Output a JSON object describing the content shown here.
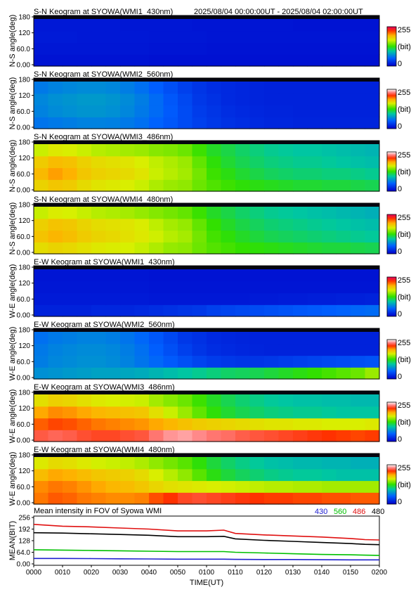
{
  "header": {
    "date_range": "2025/08/04 00:00:00UT - 2025/08/04 02:00:00UT"
  },
  "colorbar": {
    "max_label": "255",
    "unit_label": "(bit)",
    "min_label": "0"
  },
  "chart_data": [
    {
      "type": "heatmap",
      "title": "S-N Keogram at SYOWA(WMI1_430nm)",
      "ylabel": "N-S angle(deg)",
      "yticks": [
        "0.00",
        "60.0",
        "120",
        "180"
      ],
      "ylim": [
        0,
        180
      ],
      "scale": "sequential",
      "z_rows_south_to_north_vs_time": [
        [
          10,
          10,
          10,
          10,
          10,
          10,
          10,
          10,
          9,
          9,
          9,
          9,
          9,
          9,
          9,
          9,
          9,
          9,
          9,
          9,
          9,
          9,
          9,
          9
        ],
        [
          12,
          12,
          12,
          12,
          12,
          12,
          12,
          12,
          11,
          11,
          11,
          11,
          10,
          10,
          10,
          10,
          10,
          10,
          10,
          10,
          10,
          10,
          10,
          10
        ],
        [
          14,
          14,
          14,
          13,
          13,
          13,
          13,
          13,
          12,
          12,
          12,
          12,
          11,
          11,
          11,
          11,
          11,
          11,
          11,
          11,
          11,
          11,
          11,
          11
        ],
        [
          13,
          13,
          13,
          13,
          13,
          13,
          12,
          12,
          12,
          12,
          12,
          11,
          11,
          11,
          11,
          11,
          11,
          11,
          10,
          10,
          10,
          10,
          10,
          10
        ]
      ]
    },
    {
      "type": "heatmap",
      "title": "S-N Keogram at SYOWA(WMI2_560nm)",
      "ylabel": "N-S angle(deg)",
      "yticks": [
        "0.00",
        "60.0",
        "120",
        "180"
      ],
      "ylim": [
        0,
        180
      ],
      "scale": "white-top",
      "z_rows_south_to_north_vs_time": [
        [
          60,
          62,
          64,
          66,
          66,
          65,
          62,
          58,
          52,
          46,
          40,
          34,
          30,
          26,
          24,
          22,
          20,
          20,
          19,
          19,
          19,
          19,
          19,
          19
        ],
        [
          66,
          70,
          72,
          74,
          74,
          72,
          68,
          62,
          56,
          48,
          40,
          32,
          28,
          24,
          22,
          20,
          19,
          19,
          18,
          18,
          18,
          18,
          18,
          18
        ],
        [
          68,
          72,
          74,
          76,
          76,
          74,
          70,
          64,
          56,
          46,
          38,
          30,
          26,
          22,
          20,
          19,
          18,
          18,
          18,
          18,
          18,
          18,
          18,
          18
        ],
        [
          62,
          66,
          68,
          70,
          70,
          68,
          64,
          58,
          50,
          42,
          34,
          28,
          24,
          22,
          20,
          19,
          18,
          18,
          18,
          18,
          18,
          18,
          18,
          18
        ]
      ]
    },
    {
      "type": "heatmap",
      "title": "S-N Keogram at SYOWA(WMI3_486nm)",
      "ylabel": "N-S angle(deg)",
      "yticks": [
        "0.00",
        "60.0",
        "120",
        "180"
      ],
      "ylim": [
        0,
        180
      ],
      "scale": "white-top",
      "z_rows_south_to_north_vs_time": [
        [
          175,
          180,
          178,
          172,
          168,
          166,
          164,
          160,
          154,
          150,
          148,
          140,
          134,
          130,
          126,
          124,
          122,
          120,
          118,
          118,
          116,
          116,
          114,
          112
        ],
        [
          185,
          192,
          188,
          180,
          176,
          174,
          172,
          168,
          160,
          156,
          152,
          142,
          130,
          124,
          118,
          114,
          110,
          108,
          106,
          106,
          104,
          104,
          102,
          100
        ],
        [
          178,
          184,
          182,
          176,
          172,
          170,
          168,
          164,
          158,
          154,
          150,
          138,
          126,
          118,
          112,
          108,
          104,
          102,
          100,
          100,
          98,
          96,
          94,
          92
        ],
        [
          160,
          166,
          164,
          160,
          156,
          154,
          152,
          150,
          146,
          144,
          140,
          130,
          120,
          114,
          108,
          104,
          100,
          98,
          96,
          96,
          94,
          92,
          90,
          88
        ]
      ]
    },
    {
      "type": "heatmap",
      "title": "S-N Keogram at SYOWA(WMI4_480nm)",
      "ylabel": "N-S angle(deg)",
      "yticks": [
        "0.00",
        "60.0",
        "120",
        "180"
      ],
      "ylim": [
        0,
        180
      ],
      "scale": "sequential",
      "z_rows_south_to_north_vs_time": [
        [
          178,
          182,
          180,
          176,
          172,
          170,
          168,
          164,
          158,
          152,
          150,
          142,
          136,
          132,
          128,
          126,
          124,
          122,
          120,
          118,
          116,
          116,
          114,
          112
        ],
        [
          190,
          196,
          192,
          186,
          182,
          180,
          176,
          172,
          166,
          160,
          156,
          144,
          132,
          126,
          120,
          116,
          112,
          110,
          108,
          106,
          104,
          102,
          100,
          98
        ],
        [
          184,
          190,
          188,
          182,
          178,
          176,
          174,
          170,
          162,
          156,
          152,
          140,
          128,
          120,
          114,
          110,
          106,
          104,
          102,
          100,
          98,
          96,
          94,
          92
        ],
        [
          164,
          170,
          168,
          164,
          160,
          158,
          156,
          152,
          148,
          144,
          140,
          130,
          120,
          114,
          108,
          104,
          100,
          98,
          96,
          94,
          92,
          90,
          88,
          86
        ]
      ]
    },
    {
      "type": "heatmap",
      "title": "E-W Keogram at SYOWA(WMI1_430nm)",
      "ylabel": "W-E angle(deg)",
      "yticks": [
        "0.00",
        "60.0",
        "120",
        "180"
      ],
      "ylim": [
        0,
        180
      ],
      "scale": "sequential",
      "z_rows_south_to_north_vs_time": [
        [
          18,
          18,
          18,
          18,
          20,
          20,
          20,
          22,
          24,
          26,
          28,
          30,
          34,
          36,
          38,
          40,
          42,
          44,
          46,
          48,
          50,
          52,
          54,
          56
        ],
        [
          14,
          14,
          14,
          14,
          14,
          14,
          14,
          14,
          13,
          13,
          13,
          13,
          13,
          13,
          13,
          14,
          14,
          15,
          15,
          16,
          16,
          17,
          17,
          18
        ],
        [
          12,
          12,
          12,
          12,
          12,
          12,
          12,
          12,
          11,
          11,
          11,
          11,
          11,
          11,
          11,
          11,
          11,
          11,
          11,
          11,
          11,
          11,
          11,
          11
        ],
        [
          11,
          11,
          11,
          11,
          11,
          11,
          11,
          11,
          10,
          10,
          10,
          10,
          10,
          10,
          10,
          10,
          10,
          10,
          10,
          10,
          10,
          10,
          10,
          10
        ]
      ]
    },
    {
      "type": "heatmap",
      "title": "E-W Keogram at SYOWA(WMI2_560nm)",
      "ylabel": "W-E angle(deg)",
      "yticks": [
        "0.00",
        "60.0",
        "120",
        "180"
      ],
      "ylim": [
        0,
        180
      ],
      "scale": "white-top",
      "z_rows_south_to_north_vs_time": [
        [
          72,
          74,
          76,
          78,
          80,
          80,
          82,
          84,
          88,
          92,
          96,
          100,
          104,
          108,
          110,
          112,
          116,
          120,
          124,
          128,
          132,
          136,
          140,
          150
        ],
        [
          64,
          68,
          70,
          72,
          72,
          70,
          66,
          60,
          54,
          48,
          42,
          36,
          32,
          30,
          28,
          28,
          30,
          32,
          34,
          36,
          38,
          40,
          42,
          44
        ],
        [
          62,
          66,
          68,
          70,
          70,
          68,
          64,
          58,
          50,
          42,
          34,
          28,
          24,
          22,
          20,
          19,
          18,
          18,
          18,
          18,
          18,
          18,
          18,
          18
        ],
        [
          58,
          62,
          64,
          66,
          66,
          64,
          60,
          54,
          46,
          38,
          30,
          26,
          22,
          20,
          19,
          18,
          18,
          18,
          18,
          18,
          18,
          18,
          18,
          18
        ]
      ]
    },
    {
      "type": "heatmap",
      "title": "E-W Keogram at SYOWA(WMI3_486nm)",
      "ylabel": "W-E angle(deg)",
      "yticks": [
        "0.00",
        "60.0",
        "120",
        "180"
      ],
      "ylim": [
        0,
        180
      ],
      "scale": "white-top",
      "z_rows_south_to_north_vs_time": [
        [
          225,
          228,
          226,
          222,
          220,
          220,
          222,
          224,
          232,
          238,
          240,
          236,
          232,
          230,
          226,
          224,
          222,
          220,
          218,
          216,
          214,
          212,
          210,
          212
        ],
        [
          205,
          210,
          208,
          204,
          200,
          198,
          196,
          194,
          190,
          186,
          182,
          178,
          176,
          174,
          172,
          170,
          168,
          168,
          166,
          166,
          164,
          164,
          164,
          166
        ],
        [
          190,
          196,
          194,
          190,
          186,
          184,
          182,
          180,
          170,
          160,
          150,
          138,
          126,
          118,
          112,
          108,
          104,
          102,
          100,
          100,
          98,
          96,
          96,
          96
        ],
        [
          170,
          176,
          174,
          170,
          166,
          164,
          162,
          160,
          152,
          146,
          140,
          130,
          120,
          112,
          106,
          102,
          98,
          96,
          94,
          94,
          92,
          92,
          90,
          90
        ]
      ]
    },
    {
      "type": "heatmap",
      "title": "E-W Keogram at SYOWA(WMI4_480nm)",
      "ylabel": "W-E angle(deg)",
      "yticks": [
        "0.00",
        "60.0",
        "120",
        "180"
      ],
      "ylim": [
        0,
        180
      ],
      "scale": "white-top",
      "z_rows_south_to_north_vs_time": [
        [
          200,
          206,
          204,
          200,
          198,
          196,
          196,
          198,
          208,
          214,
          220,
          222,
          220,
          218,
          216,
          214,
          212,
          212,
          210,
          210,
          208,
          208,
          206,
          206
        ],
        [
          196,
          200,
          198,
          194,
          190,
          186,
          184,
          180,
          174,
          170,
          168,
          166,
          164,
          162,
          160,
          158,
          156,
          156,
          154,
          154,
          152,
          152,
          152,
          152
        ],
        [
          184,
          190,
          188,
          184,
          180,
          178,
          176,
          172,
          164,
          156,
          148,
          136,
          124,
          116,
          110,
          106,
          102,
          100,
          98,
          98,
          96,
          94,
          94,
          94
        ],
        [
          166,
          172,
          170,
          166,
          162,
          160,
          158,
          154,
          148,
          142,
          136,
          126,
          116,
          108,
          102,
          98,
          94,
          92,
          90,
          90,
          88,
          88,
          86,
          86
        ]
      ]
    },
    {
      "type": "line",
      "title": "Mean intensity in FOV of Syowa WMI",
      "xlabel": "TIME(UT)",
      "ylabel": "MEAN(BIT)",
      "ylim": [
        0,
        256
      ],
      "yticks": [
        "0.00",
        "64.0",
        "128",
        "192",
        "256"
      ],
      "xticks": [
        "0000",
        "0010",
        "0020",
        "0030",
        "0040",
        "0050",
        "0100",
        "0110",
        "0120",
        "0130",
        "0140",
        "0150",
        "0200"
      ],
      "x": [
        0,
        10,
        20,
        30,
        40,
        50,
        60,
        66,
        70,
        80,
        90,
        100,
        110,
        115,
        120
      ],
      "series": [
        {
          "name": "430",
          "color": "#2020d0",
          "values": [
            30,
            30,
            29,
            28,
            27,
            26,
            26,
            26,
            25,
            24,
            24,
            23,
            22,
            22,
            22
          ]
        },
        {
          "name": "560",
          "color": "#00c000",
          "values": [
            78,
            76,
            74,
            72,
            70,
            68,
            68,
            68,
            64,
            60,
            56,
            52,
            50,
            48,
            47
          ]
        },
        {
          "name": "486",
          "color": "#e01010",
          "values": [
            218,
            208,
            204,
            198,
            192,
            182,
            182,
            186,
            168,
            160,
            154,
            148,
            140,
            134,
            132
          ]
        },
        {
          "name": "480",
          "color": "#000000",
          "values": [
            172,
            170,
            166,
            162,
            158,
            150,
            150,
            152,
            138,
            130,
            124,
            118,
            112,
            108,
            106
          ]
        }
      ]
    }
  ]
}
